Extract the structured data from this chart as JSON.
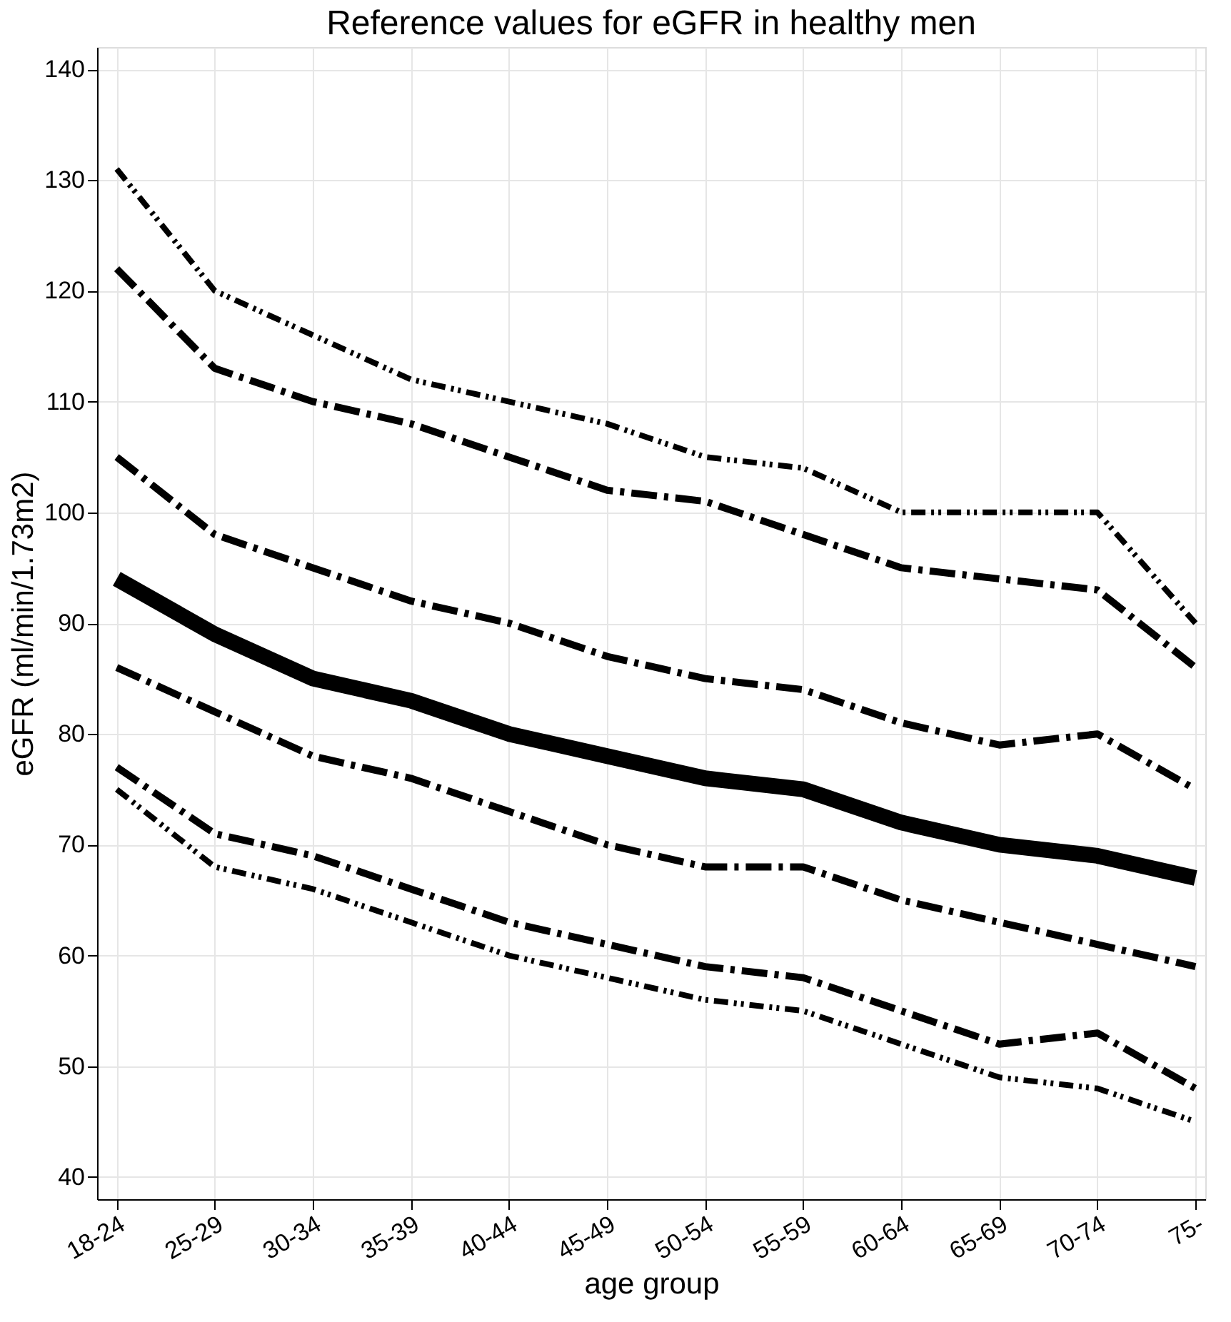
{
  "chart_data": {
    "type": "line",
    "title": "Reference values for eGFR in healthy men",
    "xlabel": "age group",
    "ylabel": "eGFR (ml/min/1.73m2)",
    "categories": [
      "18-24",
      "25-29",
      "30-34",
      "35-39",
      "40-44",
      "45-49",
      "50-54",
      "55-59",
      "60-64",
      "65-69",
      "70-74",
      "75-"
    ],
    "series": [
      {
        "color": "#000000",
        "line_style": "dotted",
        "values": [
          131,
          120,
          116,
          112,
          110,
          108,
          105,
          104,
          100,
          100,
          100,
          90
        ]
      },
      {
        "color": "#000000",
        "line_style": "dashed",
        "values": [
          122,
          113,
          110,
          108,
          105,
          102,
          101,
          98,
          95,
          94,
          93,
          86
        ]
      },
      {
        "color": "#000000",
        "line_style": "dashed",
        "values": [
          105,
          98,
          95,
          92,
          90,
          87,
          85,
          84,
          81,
          79,
          80,
          75
        ]
      },
      {
        "color": "#000000",
        "line_style": "solid",
        "values": [
          94,
          89,
          85,
          83,
          80,
          78,
          76,
          75,
          72,
          70,
          69,
          67
        ]
      },
      {
        "color": "#000000",
        "line_style": "dashed",
        "values": [
          86,
          82,
          78,
          76,
          73,
          70,
          68,
          68,
          65,
          63,
          61,
          59
        ]
      },
      {
        "color": "#000000",
        "line_style": "dashed",
        "values": [
          77,
          71,
          69,
          66,
          63,
          61,
          59,
          58,
          55,
          52,
          53,
          48
        ]
      },
      {
        "color": "#000000",
        "line_style": "dotted",
        "values": [
          75,
          68,
          66,
          63,
          60,
          58,
          56,
          55,
          52,
          49,
          48,
          45
        ]
      }
    ],
    "ylim": [
      38,
      142
    ],
    "yticks": [
      40,
      50,
      60,
      70,
      80,
      90,
      100,
      110,
      120,
      130,
      140
    ],
    "grid": true,
    "marker": "none"
  }
}
